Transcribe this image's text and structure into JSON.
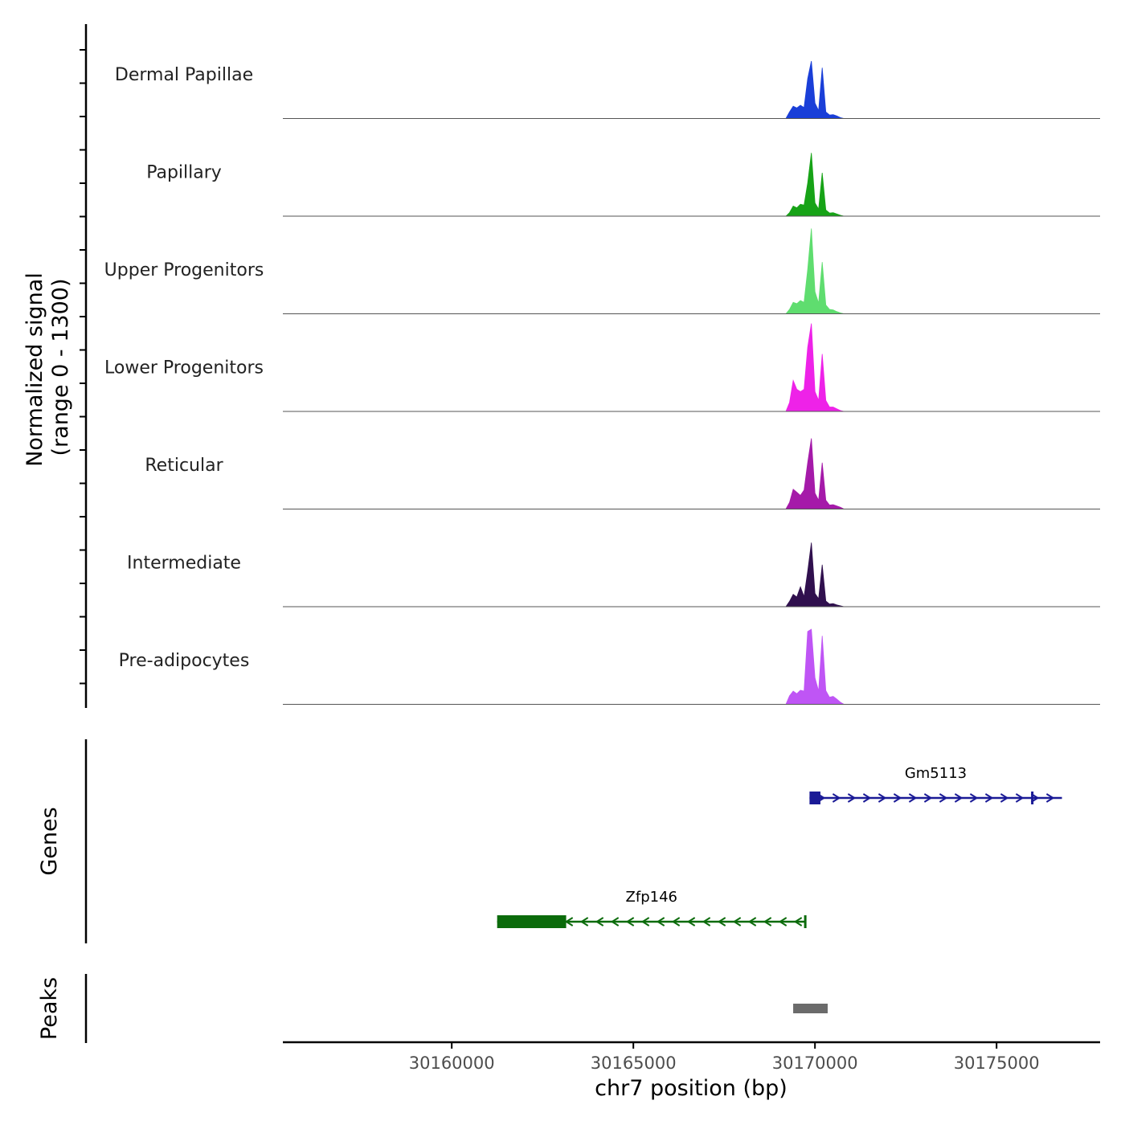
{
  "chart_data": {
    "type": "area",
    "title": "",
    "y_axis_label": "Normalized signal",
    "y_axis_range_label": "(range 0 - 1300)",
    "ylim": [
      0,
      1300
    ],
    "genes_label": "Genes",
    "peaks_label": "Peaks",
    "xlabel": "chr7 position (bp)",
    "xlim": [
      30155350,
      30177850
    ],
    "x_ticks": [
      30160000,
      30165000,
      30170000,
      30175000
    ],
    "x_tick_labels": [
      "30160000",
      "30165000",
      "30170000",
      "30175000"
    ],
    "tracks": [
      {
        "name": "Dermal Papillae",
        "color": "#1a3fd8",
        "x": [
          30169300,
          30169400,
          30169500,
          30169600,
          30169700,
          30169800,
          30169900,
          30170000,
          30170100,
          30170200,
          30170300,
          30170400,
          30170500,
          30170600,
          30170700
        ],
        "y": [
          150,
          280,
          240,
          300,
          250,
          900,
          1300,
          350,
          180,
          1150,
          150,
          80,
          90,
          60,
          20
        ]
      },
      {
        "name": "Papillary",
        "color": "#17a317",
        "x": [
          30169300,
          30169400,
          30169500,
          30169600,
          30169700,
          30169800,
          30169900,
          30170000,
          30170100,
          30170200,
          30170300,
          30170400,
          30170500,
          30170600,
          30170700
        ],
        "y": [
          80,
          230,
          190,
          270,
          250,
          750,
          1430,
          300,
          160,
          980,
          140,
          70,
          80,
          50,
          20
        ]
      },
      {
        "name": "Upper Progenitors",
        "color": "#5fdd6f",
        "x": [
          30169300,
          30169400,
          30169500,
          30169600,
          30169700,
          30169800,
          30169900,
          30170000,
          30170100,
          30170200,
          30170300,
          30170400,
          30170500,
          30170600,
          30170700
        ],
        "y": [
          100,
          260,
          230,
          300,
          260,
          1000,
          1930,
          500,
          240,
          1170,
          200,
          100,
          90,
          50,
          20
        ]
      },
      {
        "name": "Lower Progenitors",
        "color": "#ee22e8",
        "x": [
          30169300,
          30169400,
          30169500,
          30169600,
          30169700,
          30169800,
          30169900,
          30170000,
          30170100,
          30170200,
          30170300,
          30170400,
          30170500,
          30170600,
          30170700
        ],
        "y": [
          200,
          700,
          500,
          450,
          500,
          1450,
          2000,
          450,
          250,
          1300,
          250,
          100,
          100,
          60,
          20
        ]
      },
      {
        "name": "Reticular",
        "color": "#a51aa9",
        "x": [
          30169300,
          30169400,
          30169500,
          30169600,
          30169700,
          30169800,
          30169900,
          30170000,
          30170100,
          30170200,
          30170300,
          30170400,
          30170500,
          30170600,
          30170700
        ],
        "y": [
          150,
          450,
          380,
          310,
          430,
          1050,
          1600,
          360,
          200,
          1050,
          200,
          90,
          100,
          70,
          40
        ]
      },
      {
        "name": "Intermediate",
        "color": "#30104e",
        "x": [
          30169300,
          30169400,
          30169500,
          30169600,
          30169700,
          30169800,
          30169900,
          30170000,
          30170100,
          30170200,
          30170300,
          30170400,
          30170500,
          30170600,
          30170700
        ],
        "y": [
          120,
          280,
          220,
          450,
          230,
          800,
          1450,
          300,
          180,
          950,
          130,
          60,
          70,
          40,
          20
        ]
      },
      {
        "name": "Pre-adipocytes",
        "color": "#bf55f5",
        "x": [
          30169300,
          30169400,
          30169500,
          30169600,
          30169700,
          30169800,
          30169900,
          30170000,
          30170100,
          30170200,
          30170300,
          30170400,
          30170500,
          30170600,
          30170700
        ],
        "y": [
          190,
          300,
          240,
          320,
          300,
          1650,
          1700,
          600,
          300,
          1550,
          310,
          160,
          180,
          120,
          50
        ]
      }
    ],
    "genes": [
      {
        "name": "Gm5113",
        "color": "#1a1a96",
        "strand": "+",
        "start": 30169850,
        "end": 30176800,
        "exons": [
          [
            30169850,
            30170150
          ],
          [
            30175950,
            30176000
          ]
        ]
      },
      {
        "name": "Zfp146",
        "color": "#0b6b0b",
        "strand": "-",
        "start": 30161250,
        "end": 30169750,
        "exons": [
          [
            30161250,
            30163150
          ],
          [
            30169700,
            30169750
          ]
        ]
      }
    ],
    "peaks": [
      {
        "start": 30169400,
        "end": 30170350,
        "color": "#6b6b6b"
      }
    ]
  }
}
